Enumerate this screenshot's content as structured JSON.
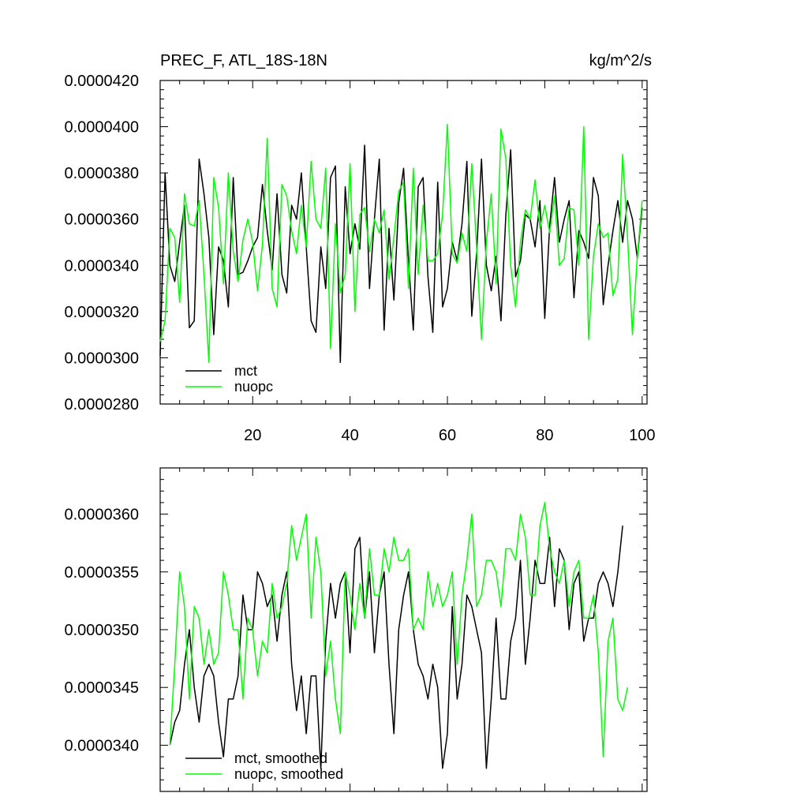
{
  "chart_data": [
    {
      "type": "line",
      "title": "PREC_F, ATL_18S-18N",
      "units": "kg/m^2/s",
      "xlim": [
        1,
        101
      ],
      "ylim": [
        2.8e-05,
        4.2e-05
      ],
      "x_tick_values": [
        20,
        40,
        60,
        80,
        100
      ],
      "x_tick_labels": [
        "20",
        "40",
        "60",
        "80",
        "100"
      ],
      "y_tick_values": [
        2.8e-05,
        3e-05,
        3.2e-05,
        3.4e-05,
        3.6e-05,
        3.8e-05,
        4e-05,
        4.2e-05
      ],
      "y_tick_labels": [
        "0.0000280",
        "0.0000300",
        "0.0000320",
        "0.0000340",
        "0.0000360",
        "0.0000380",
        "0.0000400",
        "0.0000420"
      ],
      "legend_position": "bottom-left",
      "grid": false,
      "x_start": 1,
      "series": [
        {
          "name": "mct",
          "color": "#000000",
          "values": [
            3.01e-05,
            3.8e-05,
            3.4e-05,
            3.33e-05,
            3.5e-05,
            3.66e-05,
            3.13e-05,
            3.16e-05,
            3.86e-05,
            3.71e-05,
            3.52e-05,
            3.1e-05,
            3.48e-05,
            3.42e-05,
            3.22e-05,
            3.78e-05,
            3.36e-05,
            3.37e-05,
            3.42e-05,
            3.48e-05,
            3.52e-05,
            3.75e-05,
            3.55e-05,
            3.38e-05,
            3.71e-05,
            3.36e-05,
            3.28e-05,
            3.66e-05,
            3.6e-05,
            3.8e-05,
            3.48e-05,
            3.16e-05,
            3.11e-05,
            3.48e-05,
            3.3e-05,
            3.78e-05,
            3.83e-05,
            2.98e-05,
            3.74e-05,
            3.45e-05,
            3.58e-05,
            3.47e-05,
            3.92e-05,
            3.3e-05,
            3.6e-05,
            3.86e-05,
            3.12e-05,
            3.56e-05,
            3.25e-05,
            3.67e-05,
            3.82e-05,
            3.42e-05,
            3.12e-05,
            3.74e-05,
            3.78e-05,
            3.35e-05,
            3.11e-05,
            3.76e-05,
            3.22e-05,
            3.3e-05,
            3.5e-05,
            3.42e-05,
            3.58e-05,
            3.85e-05,
            3.18e-05,
            3.45e-05,
            3.86e-05,
            3.4e-05,
            3.29e-05,
            3.44e-05,
            3.16e-05,
            3.62e-05,
            3.9e-05,
            3.35e-05,
            3.42e-05,
            3.62e-05,
            3.6e-05,
            3.48e-05,
            3.68e-05,
            3.17e-05,
            3.57e-05,
            3.78e-05,
            3.5e-05,
            3.6e-05,
            3.68e-05,
            3.26e-05,
            3.55e-05,
            3.5e-05,
            3.43e-05,
            3.78e-05,
            3.7e-05,
            3.23e-05,
            3.4e-05,
            3.55e-05,
            3.68e-05,
            3.5e-05,
            3.68e-05,
            3.6e-05,
            3.43e-05,
            3.65e-05
          ]
        },
        {
          "name": "nuopc",
          "color": "#00ff00",
          "values": [
            3.07e-05,
            3.16e-05,
            3.56e-05,
            3.52e-05,
            3.24e-05,
            3.71e-05,
            3.58e-05,
            3.57e-05,
            3.68e-05,
            3.36e-05,
            2.98e-05,
            3.78e-05,
            3.65e-05,
            3.32e-05,
            3.8e-05,
            3.46e-05,
            3.33e-05,
            3.51e-05,
            3.6e-05,
            3.5e-05,
            3.29e-05,
            3.49e-05,
            3.95e-05,
            3.3e-05,
            3.22e-05,
            3.75e-05,
            3.7e-05,
            3.55e-05,
            3.45e-05,
            3.66e-05,
            3.48e-05,
            3.85e-05,
            3.6e-05,
            3.56e-05,
            3.82e-05,
            3.04e-05,
            3.58e-05,
            3.28e-05,
            3.36e-05,
            3.84e-05,
            3.2e-05,
            3.62e-05,
            3.65e-05,
            3.46e-05,
            3.6e-05,
            3.54e-05,
            3.64e-05,
            3.34e-05,
            3.52e-05,
            3.72e-05,
            3.76e-05,
            3.3e-05,
            3.82e-05,
            3.36e-05,
            3.66e-05,
            3.42e-05,
            3.42e-05,
            3.45e-05,
            3.62e-05,
            4.01e-05,
            3.45e-05,
            3.41e-05,
            3.54e-05,
            3.46e-05,
            3.84e-05,
            3.48e-05,
            3.08e-05,
            3.5e-05,
            3.71e-05,
            3.32e-05,
            3.99e-05,
            3.86e-05,
            3.4e-05,
            3.22e-05,
            3.5e-05,
            3.64e-05,
            3.6e-05,
            3.77e-05,
            3.56e-05,
            3.66e-05,
            3.54e-05,
            3.7e-05,
            3.4e-05,
            3.43e-05,
            3.65e-05,
            3.64e-05,
            3.4e-05,
            4e-05,
            3.08e-05,
            3.44e-05,
            3.58e-05,
            3.52e-05,
            3.54e-05,
            3.27e-05,
            3.34e-05,
            3.88e-05,
            3.52e-05,
            3.1e-05,
            3.44e-05,
            3.68e-05
          ]
        }
      ]
    },
    {
      "type": "line",
      "title": "",
      "xlim": [
        1,
        101
      ],
      "ylim": [
        3.36e-05,
        3.64e-05
      ],
      "x_tick_values": [
        20,
        40,
        60,
        80,
        100
      ],
      "y_tick_values": [
        3.4e-05,
        3.45e-05,
        3.5e-05,
        3.55e-05,
        3.6e-05
      ],
      "y_tick_labels": [
        "0.0000340",
        "0.0000345",
        "0.0000350",
        "0.0000355",
        "0.0000360"
      ],
      "legend_position": "bottom-left",
      "grid": false,
      "x_start": 3,
      "series": [
        {
          "name": "mct, smoothed",
          "color": "#000000",
          "values": [
            3.4e-05,
            3.42e-05,
            3.43e-05,
            3.47e-05,
            3.5e-05,
            3.45e-05,
            3.42e-05,
            3.46e-05,
            3.47e-05,
            3.46e-05,
            3.42e-05,
            3.39e-05,
            3.44e-05,
            3.44e-05,
            3.46e-05,
            3.53e-05,
            3.5e-05,
            3.5e-05,
            3.55e-05,
            3.54e-05,
            3.52e-05,
            3.53e-05,
            3.49e-05,
            3.53e-05,
            3.55e-05,
            3.47e-05,
            3.43e-05,
            3.46e-05,
            3.41e-05,
            3.46e-05,
            3.46e-05,
            3.38e-05,
            3.49e-05,
            3.54e-05,
            3.51e-05,
            3.54e-05,
            3.55e-05,
            3.48e-05,
            3.57e-05,
            3.58e-05,
            3.51e-05,
            3.55e-05,
            3.48e-05,
            3.53e-05,
            3.55e-05,
            3.47e-05,
            3.41e-05,
            3.5e-05,
            3.53e-05,
            3.55e-05,
            3.5e-05,
            3.47e-05,
            3.46e-05,
            3.44e-05,
            3.47e-05,
            3.45e-05,
            3.38e-05,
            3.41e-05,
            3.52e-05,
            3.44e-05,
            3.47e-05,
            3.53e-05,
            3.52e-05,
            3.5e-05,
            3.48e-05,
            3.38e-05,
            3.44e-05,
            3.51e-05,
            3.44e-05,
            3.44e-05,
            3.49e-05,
            3.51e-05,
            3.56e-05,
            3.47e-05,
            3.51e-05,
            3.56e-05,
            3.54e-05,
            3.54e-05,
            3.58e-05,
            3.52e-05,
            3.57e-05,
            3.56e-05,
            3.5e-05,
            3.54e-05,
            3.55e-05,
            3.49e-05,
            3.51e-05,
            3.51e-05,
            3.54e-05,
            3.55e-05,
            3.54e-05,
            3.52e-05,
            3.55e-05,
            3.59e-05
          ]
        },
        {
          "name": "nuopc, smoothed",
          "color": "#00ff00",
          "values": [
            3.4e-05,
            3.47e-05,
            3.55e-05,
            3.52e-05,
            3.44e-05,
            3.52e-05,
            3.51e-05,
            3.47e-05,
            3.5e-05,
            3.47e-05,
            3.48e-05,
            3.55e-05,
            3.53e-05,
            3.5e-05,
            3.5e-05,
            3.44e-05,
            3.51e-05,
            3.5e-05,
            3.46e-05,
            3.49e-05,
            3.48e-05,
            3.54e-05,
            3.51e-05,
            3.52e-05,
            3.54e-05,
            3.59e-05,
            3.56e-05,
            3.58e-05,
            3.6e-05,
            3.51e-05,
            3.58e-05,
            3.55e-05,
            3.46e-05,
            3.49e-05,
            3.44e-05,
            3.41e-05,
            3.55e-05,
            3.53e-05,
            3.5e-05,
            3.54e-05,
            3.51e-05,
            3.57e-05,
            3.53e-05,
            3.53e-05,
            3.57e-05,
            3.55e-05,
            3.58e-05,
            3.56e-05,
            3.56e-05,
            3.57e-05,
            3.5e-05,
            3.51e-05,
            3.5e-05,
            3.55e-05,
            3.52e-05,
            3.54e-05,
            3.52e-05,
            3.53e-05,
            3.55e-05,
            3.47e-05,
            3.53e-05,
            3.56e-05,
            3.6e-05,
            3.52e-05,
            3.53e-05,
            3.56e-05,
            3.56e-05,
            3.55e-05,
            3.52e-05,
            3.57e-05,
            3.57e-05,
            3.56e-05,
            3.6e-05,
            3.58e-05,
            3.53e-05,
            3.53e-05,
            3.59e-05,
            3.61e-05,
            3.57e-05,
            3.55e-05,
            3.54e-05,
            3.56e-05,
            3.52e-05,
            3.55e-05,
            3.56e-05,
            3.51e-05,
            3.51e-05,
            3.53e-05,
            3.48e-05,
            3.39e-05,
            3.49e-05,
            3.51e-05,
            3.44e-05,
            3.43e-05,
            3.45e-05
          ]
        }
      ]
    }
  ]
}
